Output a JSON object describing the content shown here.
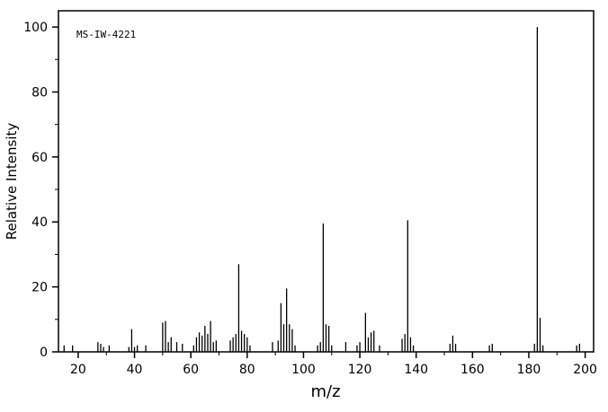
{
  "figure": {
    "id_label": "MS-IW-4221",
    "xlabel": "m/z",
    "ylabel": "Relative Intensity",
    "colors": {
      "background": "#ffffff",
      "axis": "#000000",
      "peaks": "#000000"
    }
  },
  "chart_data": {
    "type": "bar",
    "title": "",
    "subtitle": "MS-IW-4221",
    "xlabel": "m/z",
    "ylabel": "Relative Intensity",
    "xlim": [
      13,
      203
    ],
    "ylim": [
      0,
      105
    ],
    "xticks": [
      20,
      40,
      60,
      80,
      100,
      120,
      140,
      160,
      180,
      200
    ],
    "yticks": [
      0,
      20,
      40,
      60,
      80,
      100
    ],
    "minor_tick_step": 10,
    "grid": false,
    "legend": "none",
    "peaks": [
      [
        15,
        2
      ],
      [
        18,
        2
      ],
      [
        27,
        3
      ],
      [
        28,
        2.5
      ],
      [
        29,
        1.5
      ],
      [
        31,
        2
      ],
      [
        38,
        1.5
      ],
      [
        39,
        7
      ],
      [
        40,
        1.5
      ],
      [
        41,
        2
      ],
      [
        44,
        2
      ],
      [
        50,
        9
      ],
      [
        51,
        9.5
      ],
      [
        52,
        3
      ],
      [
        53,
        4.5
      ],
      [
        55,
        3
      ],
      [
        57,
        2.5
      ],
      [
        61,
        2
      ],
      [
        62,
        4.5
      ],
      [
        63,
        6
      ],
      [
        64,
        5
      ],
      [
        65,
        8
      ],
      [
        66,
        5.5
      ],
      [
        67,
        9.5
      ],
      [
        68,
        3
      ],
      [
        69,
        3.5
      ],
      [
        74,
        3.5
      ],
      [
        75,
        4.5
      ],
      [
        76,
        5.5
      ],
      [
        77,
        27
      ],
      [
        78,
        6.5
      ],
      [
        79,
        5.5
      ],
      [
        80,
        4.5
      ],
      [
        81,
        2
      ],
      [
        89,
        3
      ],
      [
        91,
        3.5
      ],
      [
        92,
        15
      ],
      [
        93,
        8.5
      ],
      [
        94,
        19.5
      ],
      [
        95,
        8.5
      ],
      [
        96,
        7
      ],
      [
        97,
        2
      ],
      [
        105,
        2
      ],
      [
        106,
        3
      ],
      [
        107,
        39.5
      ],
      [
        108,
        8.5
      ],
      [
        109,
        8
      ],
      [
        110,
        2
      ],
      [
        115,
        3
      ],
      [
        119,
        2
      ],
      [
        120,
        3
      ],
      [
        122,
        12
      ],
      [
        123,
        4.5
      ],
      [
        124,
        6
      ],
      [
        125,
        6.5
      ],
      [
        127,
        2
      ],
      [
        135,
        4
      ],
      [
        136,
        5.5
      ],
      [
        137,
        40.5
      ],
      [
        138,
        4.5
      ],
      [
        139,
        2
      ],
      [
        152,
        2.5
      ],
      [
        153,
        5
      ],
      [
        154,
        2.5
      ],
      [
        166,
        2
      ],
      [
        167,
        2.5
      ],
      [
        182,
        2.5
      ],
      [
        183,
        100
      ],
      [
        184,
        10.5
      ],
      [
        185,
        2
      ],
      [
        197,
        2
      ],
      [
        198,
        2.5
      ]
    ]
  }
}
